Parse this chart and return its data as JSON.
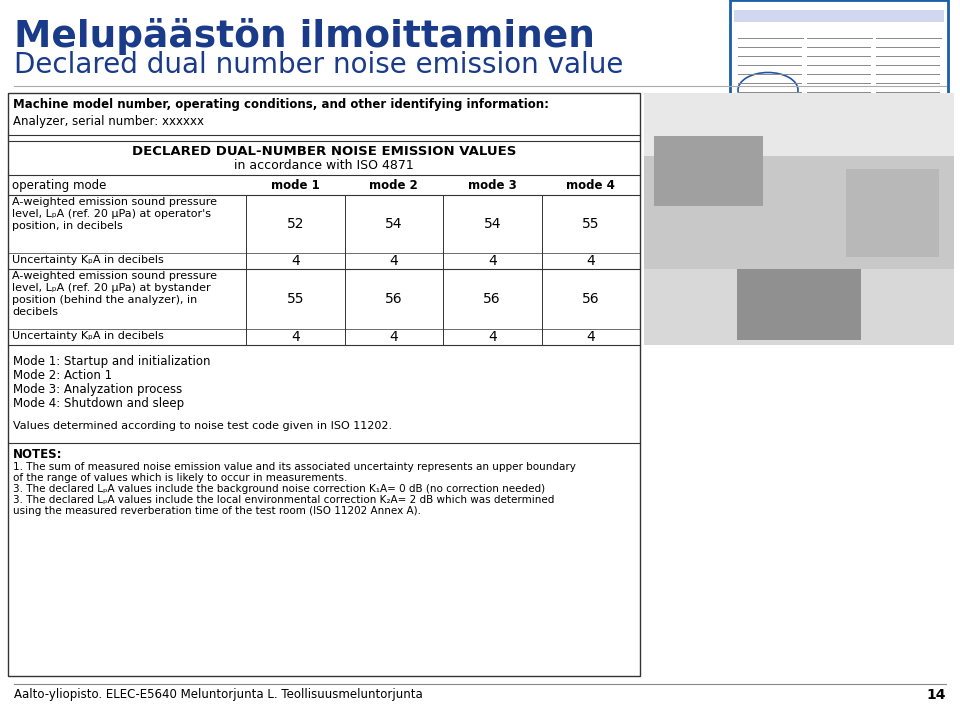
{
  "title_finnish": "Melupäästön ilmoittaminen",
  "title_english": "Declared dual number noise emission value",
  "title_color": "#1a3a8a",
  "bg_color": "#ffffff",
  "header_info_line1": "Machine model number, operating conditions, and other identifying information:",
  "header_info_line2": "Analyzer, serial number: xxxxxx",
  "table_title_line1": "DECLARED DUAL-NUMBER NOISE EMISSION VALUES",
  "table_title_line2": "in accordance with ISO 4871",
  "col_headers": [
    "operating mode",
    "mode 1",
    "mode 2",
    "mode 3",
    "mode 4"
  ],
  "row1_label_lines": [
    "A-weighted emission sound pressure",
    "level, LₚA (ref. 20 μPa) at operator's",
    "position, in decibels"
  ],
  "row1_values": [
    "52",
    "54",
    "54",
    "55"
  ],
  "row2_label": "Uncertainty KₚA in decibels",
  "row2_values": [
    "4",
    "4",
    "4",
    "4"
  ],
  "row3_label_lines": [
    "A-weighted emission sound pressure",
    "level, LₚA (ref. 20 μPa) at bystander",
    "position (behind the analyzer), in",
    "decibels"
  ],
  "row3_values": [
    "55",
    "56",
    "56",
    "56"
  ],
  "row4_label": "Uncertainty KₚA in decibels",
  "row4_values": [
    "4",
    "4",
    "4",
    "4"
  ],
  "mode_notes": [
    "Mode 1: Startup and initialization",
    "Mode 2: Action 1",
    "Mode 3: Analyzation process",
    "Mode 4: Shutdown and sleep"
  ],
  "values_note": "Values determined according to noise test code given in ISO 11202.",
  "notes_title": "NOTES:",
  "notes": [
    "1. The sum of measured noise emission value and its associated uncertainty represents an upper boundary",
    "of the range of values which is likely to occur in measurements.",
    "3. The declared LₚA values include the background noise correction K₁A= 0 dB (no correction needed)",
    "3. The declared LₚA values include the local environmental correction K₂A= 2 dB which was determined",
    "using the measured reverberation time of the test room (ISO 11202 Annex A)."
  ],
  "footer": "Aalto-yliopisto. ELEC-E5640 Meluntorjunta L. Teollisuusmeluntorjunta",
  "footer_page": "14",
  "thumb_box_color": "#1a5fa8",
  "border_color": "#333333"
}
